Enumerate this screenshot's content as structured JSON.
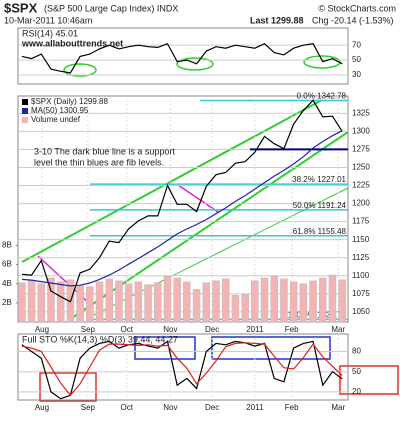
{
  "header": {
    "symbol": "$SPX",
    "name": "(S&P 500 Large Cap Index) INDX",
    "copyright": "© StockCharts.com",
    "date": "10-Mar-2011 10:46am",
    "last": "Last 1299.88",
    "change": "Chg -20.14 (-1.53%)"
  },
  "chart_data": [
    {
      "type": "line",
      "title": "RSI(14) 45.01",
      "annotations": [
        "www.allabouttrends.net"
      ],
      "xlim": [
        -0.4,
        33.6
      ],
      "ylim": [
        18,
        93
      ],
      "yticks": [
        30,
        50,
        70
      ],
      "grid": true,
      "series": [
        {
          "color": "#000000",
          "values": [
            55,
            52,
            58,
            38,
            35,
            33,
            55,
            58,
            65,
            70,
            65,
            68,
            70,
            68,
            67,
            72,
            48,
            50,
            45,
            62,
            68,
            66,
            70,
            68,
            66,
            72,
            60,
            57,
            66,
            70,
            72,
            48,
            52,
            45.01
          ]
        }
      ]
    },
    {
      "type": "line",
      "legend": true,
      "annotations": [
        "3-10 The dark blue line is a support",
        "level the thin blues are fib levels."
      ],
      "xlim": [
        -0.4,
        33.6
      ],
      "ylim": [
        1036,
        1349
      ],
      "yticks": [
        1050,
        1075,
        1100,
        1125,
        1150,
        1175,
        1200,
        1225,
        1250,
        1275,
        1300,
        1325
      ],
      "y2lim": [
        0,
        23.6
      ],
      "y2ticks": [
        {
          "value": 2,
          "label": "2B"
        },
        {
          "value": 4,
          "label": "4B"
        },
        {
          "value": 6,
          "label": "6B"
        },
        {
          "value": 8,
          "label": "8B"
        }
      ],
      "xticks": [
        {
          "value": 2.07,
          "label": "Aug"
        },
        {
          "value": 6.8,
          "label": "Sep"
        },
        {
          "value": 10.8,
          "label": "Oct"
        },
        {
          "value": 15.3,
          "label": "Nov"
        },
        {
          "value": 19.6,
          "label": "Dec"
        },
        {
          "value": 24,
          "label": "2011"
        },
        {
          "value": 27.8,
          "label": "Feb"
        },
        {
          "value": 32.6,
          "label": "Mar"
        }
      ],
      "grid": true,
      "fib_levels": [
        {
          "value": 1342.78,
          "label": "0.0% 1342.78"
        },
        {
          "value": 1227.01,
          "label": "38.2% 1227.01"
        },
        {
          "value": 1191.24,
          "label": "50.0% 1191.24"
        },
        {
          "value": 1155.48,
          "label": "61.8% 1155.48"
        },
        {
          "value": 1039.7,
          "label": "100.0% 1039.70"
        }
      ],
      "fib_color": "#33c8dc",
      "support_level": 1275,
      "support_color": "#000088",
      "series": [
        {
          "name": "$SPX (Daily) 1299.88",
          "color": "#000000",
          "values": [
            1102,
            1101,
            1121,
            1079,
            1071,
            1064,
            1104,
            1109,
            1125,
            1148,
            1146,
            1165,
            1176,
            1183,
            1183,
            1225,
            1199,
            1199,
            1189,
            1224,
            1240,
            1243,
            1256,
            1258,
            1271,
            1293,
            1283,
            1276,
            1310,
            1329,
            1343,
            1320,
            1321,
            1299.88
          ]
        },
        {
          "name": "MA(50) 1300.95",
          "color": "#2222aa",
          "values": [
            1095,
            1094,
            1092,
            1090,
            1088,
            1086,
            1087,
            1090,
            1095,
            1101,
            1108,
            1116,
            1124,
            1132,
            1140,
            1149,
            1158,
            1165,
            1171,
            1178,
            1186,
            1194,
            1203,
            1211,
            1220,
            1229,
            1238,
            1246,
            1255,
            1265,
            1277,
            1286,
            1294,
            1300.95
          ]
        },
        {
          "name": "Volume undef",
          "color": "#f2b4b4",
          "axis": "y2",
          "values": [
            4.1,
            4.3,
            4.0,
            4.6,
            4.2,
            4.4,
            3.8,
            3.7,
            4.2,
            4.5,
            4.3,
            4.0,
            4.2,
            3.9,
            4.1,
            4.8,
            4.6,
            4.2,
            3.4,
            4.1,
            4.3,
            4.5,
            2.8,
            2.9,
            4.3,
            4.6,
            4.8,
            4.5,
            4.2,
            4.0,
            4.3,
            4.6,
            4.9,
            4.4
          ]
        }
      ]
    },
    {
      "type": "line",
      "title": "Full STO %K(14,3) %D(3) 39.44, 44.27",
      "xlim": [
        -0.4,
        33.6
      ],
      "ylim": [
        8,
        106
      ],
      "yticks": [
        20,
        50,
        80
      ],
      "grid": true,
      "xticks": [
        {
          "value": 2.07,
          "label": "Aug"
        },
        {
          "value": 6.8,
          "label": "Sep"
        },
        {
          "value": 10.8,
          "label": "Oct"
        },
        {
          "value": 15.3,
          "label": "Nov"
        },
        {
          "value": 19.6,
          "label": "Dec"
        },
        {
          "value": 24,
          "label": "2011"
        },
        {
          "value": 27.8,
          "label": "Feb"
        },
        {
          "value": 32.6,
          "label": "Mar"
        }
      ],
      "series": [
        {
          "color": "#000000",
          "values": [
            90,
            80,
            70,
            20,
            10,
            15,
            70,
            85,
            92,
            95,
            85,
            90,
            92,
            88,
            85,
            95,
            30,
            40,
            25,
            80,
            92,
            90,
            95,
            93,
            88,
            92,
            40,
            35,
            85,
            92,
            95,
            30,
            50,
            39.44
          ]
        },
        {
          "color": "#dd2222",
          "values": [
            88,
            85,
            80,
            57,
            33,
            15,
            32,
            57,
            82,
            91,
            91,
            90,
            89,
            90,
            88,
            89,
            70,
            55,
            32,
            48,
            66,
            87,
            92,
            93,
            92,
            91,
            73,
            56,
            54,
            71,
            91,
            72,
            58,
            44.27
          ]
        }
      ]
    }
  ]
}
